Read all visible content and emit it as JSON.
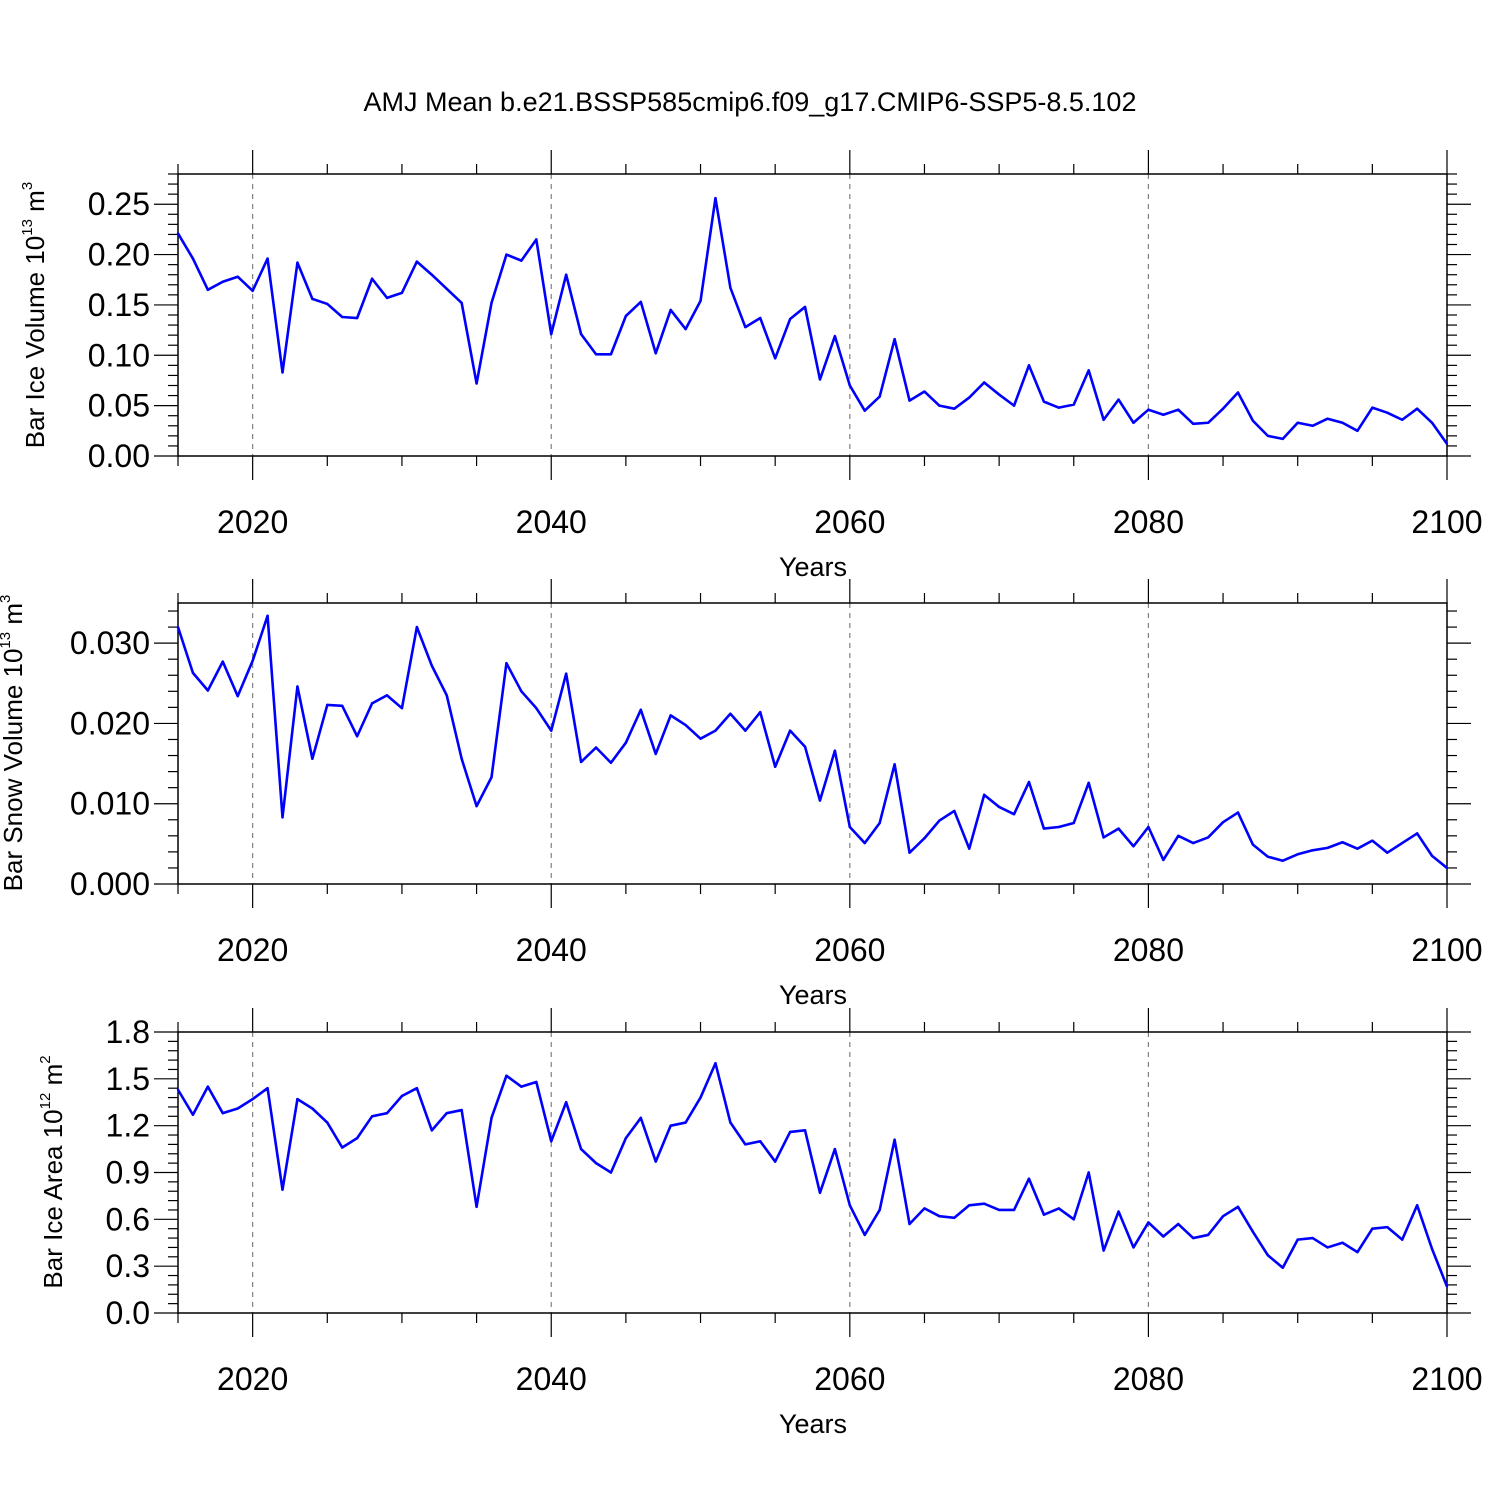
{
  "title": "AMJ Mean b.e21.BSSP585cmip6.f09_g17.CMIP6-SSP5-8.5.102",
  "colors": {
    "line": "#0000ff",
    "axis": "#000000",
    "grid": "#808080"
  },
  "chart_data": [
    {
      "type": "line",
      "ylabel": {
        "main": "Bar Ice Volume 10",
        "exp": "13",
        "unit": " m",
        "unit_exp": "3"
      },
      "xlabel": "Years",
      "xlim": [
        2015,
        2100
      ],
      "ylim": [
        0,
        0.28
      ],
      "x_ticks": [
        2020,
        2040,
        2060,
        2080,
        2100
      ],
      "y_ticks": [
        "0.00",
        "0.05",
        "0.10",
        "0.15",
        "0.20",
        "0.25"
      ],
      "grid": "vertical dashed lines at major x ticks",
      "series": [
        {
          "x_start": 2015,
          "values": [
            0.221,
            0.196,
            0.165,
            0.173,
            0.178,
            0.164,
            0.196,
            0.083,
            0.192,
            0.156,
            0.151,
            0.138,
            0.137,
            0.176,
            0.157,
            0.162,
            0.193,
            0.18,
            0.166,
            0.152,
            0.072,
            0.152,
            0.2,
            0.194,
            0.215,
            0.121,
            0.18,
            0.121,
            0.101,
            0.101,
            0.139,
            0.153,
            0.102,
            0.145,
            0.126,
            0.154,
            0.256,
            0.167,
            0.128,
            0.137,
            0.097,
            0.136,
            0.148,
            0.076,
            0.119,
            0.07,
            0.045,
            0.059,
            0.116,
            0.055,
            0.064,
            0.05,
            0.047,
            0.058,
            0.073,
            0.061,
            0.05,
            0.09,
            0.054,
            0.048,
            0.051,
            0.085,
            0.036,
            0.056,
            0.033,
            0.046,
            0.041,
            0.046,
            0.032,
            0.033,
            0.047,
            0.063,
            0.035,
            0.02,
            0.017,
            0.033,
            0.03,
            0.037,
            0.033,
            0.025,
            0.048,
            0.043,
            0.036,
            0.047,
            0.033,
            0.012
          ]
        }
      ]
    },
    {
      "type": "line",
      "ylabel": {
        "main": "Bar Snow Volume 10",
        "exp": "13",
        "unit": " m",
        "unit_exp": "3"
      },
      "xlabel": "Years",
      "xlim": [
        2015,
        2100
      ],
      "ylim": [
        0,
        0.035
      ],
      "x_ticks": [
        2020,
        2040,
        2060,
        2080,
        2100
      ],
      "y_ticks": [
        "0.000",
        "0.010",
        "0.020",
        "0.030"
      ],
      "grid": "vertical dashed lines at major x ticks",
      "series": [
        {
          "x_start": 2015,
          "values": [
            0.032,
            0.0263,
            0.0241,
            0.0277,
            0.0234,
            0.0278,
            0.0334,
            0.0083,
            0.0246,
            0.0156,
            0.0223,
            0.0222,
            0.0184,
            0.0225,
            0.0235,
            0.0219,
            0.032,
            0.0272,
            0.0235,
            0.0156,
            0.0097,
            0.0133,
            0.0275,
            0.024,
            0.0219,
            0.0191,
            0.0262,
            0.0152,
            0.017,
            0.0151,
            0.0176,
            0.0217,
            0.0162,
            0.021,
            0.0198,
            0.0181,
            0.0191,
            0.0212,
            0.0191,
            0.0214,
            0.0146,
            0.0191,
            0.0171,
            0.0104,
            0.0166,
            0.0071,
            0.0051,
            0.0076,
            0.0149,
            0.0039,
            0.0057,
            0.0079,
            0.0091,
            0.0044,
            0.0111,
            0.0096,
            0.0087,
            0.0127,
            0.0069,
            0.0071,
            0.0076,
            0.0126,
            0.0058,
            0.0069,
            0.0047,
            0.0071,
            0.003,
            0.006,
            0.0051,
            0.0058,
            0.0077,
            0.0089,
            0.0049,
            0.0034,
            0.0029,
            0.0037,
            0.0042,
            0.0045,
            0.0052,
            0.0044,
            0.0054,
            0.0039,
            0.0051,
            0.0063,
            0.0035,
            0.002
          ]
        }
      ]
    },
    {
      "type": "line",
      "ylabel": {
        "main": "Bar Ice Area 10",
        "exp": "12",
        "unit": " m",
        "unit_exp": "2"
      },
      "xlabel": "Years",
      "xlim": [
        2015,
        2100
      ],
      "ylim": [
        0,
        1.8
      ],
      "x_ticks": [
        2020,
        2040,
        2060,
        2080,
        2100
      ],
      "y_ticks": [
        "0.0",
        "0.3",
        "0.6",
        "0.9",
        "1.2",
        "1.5",
        "1.8"
      ],
      "grid": "vertical dashed lines at major x ticks",
      "series": [
        {
          "x_start": 2015,
          "values": [
            1.43,
            1.27,
            1.45,
            1.28,
            1.31,
            1.37,
            1.44,
            0.79,
            1.37,
            1.31,
            1.22,
            1.06,
            1.12,
            1.26,
            1.28,
            1.39,
            1.44,
            1.17,
            1.28,
            1.3,
            0.68,
            1.25,
            1.52,
            1.45,
            1.48,
            1.1,
            1.35,
            1.05,
            0.96,
            0.9,
            1.12,
            1.25,
            0.97,
            1.2,
            1.22,
            1.38,
            1.6,
            1.22,
            1.08,
            1.1,
            0.97,
            1.16,
            1.17,
            0.77,
            1.05,
            0.69,
            0.5,
            0.66,
            1.11,
            0.57,
            0.67,
            0.62,
            0.61,
            0.69,
            0.7,
            0.66,
            0.66,
            0.86,
            0.63,
            0.67,
            0.6,
            0.9,
            0.4,
            0.65,
            0.42,
            0.58,
            0.49,
            0.57,
            0.48,
            0.5,
            0.62,
            0.68,
            0.52,
            0.37,
            0.29,
            0.47,
            0.48,
            0.42,
            0.45,
            0.39,
            0.54,
            0.55,
            0.47,
            0.69,
            0.41,
            0.17
          ]
        }
      ]
    }
  ]
}
